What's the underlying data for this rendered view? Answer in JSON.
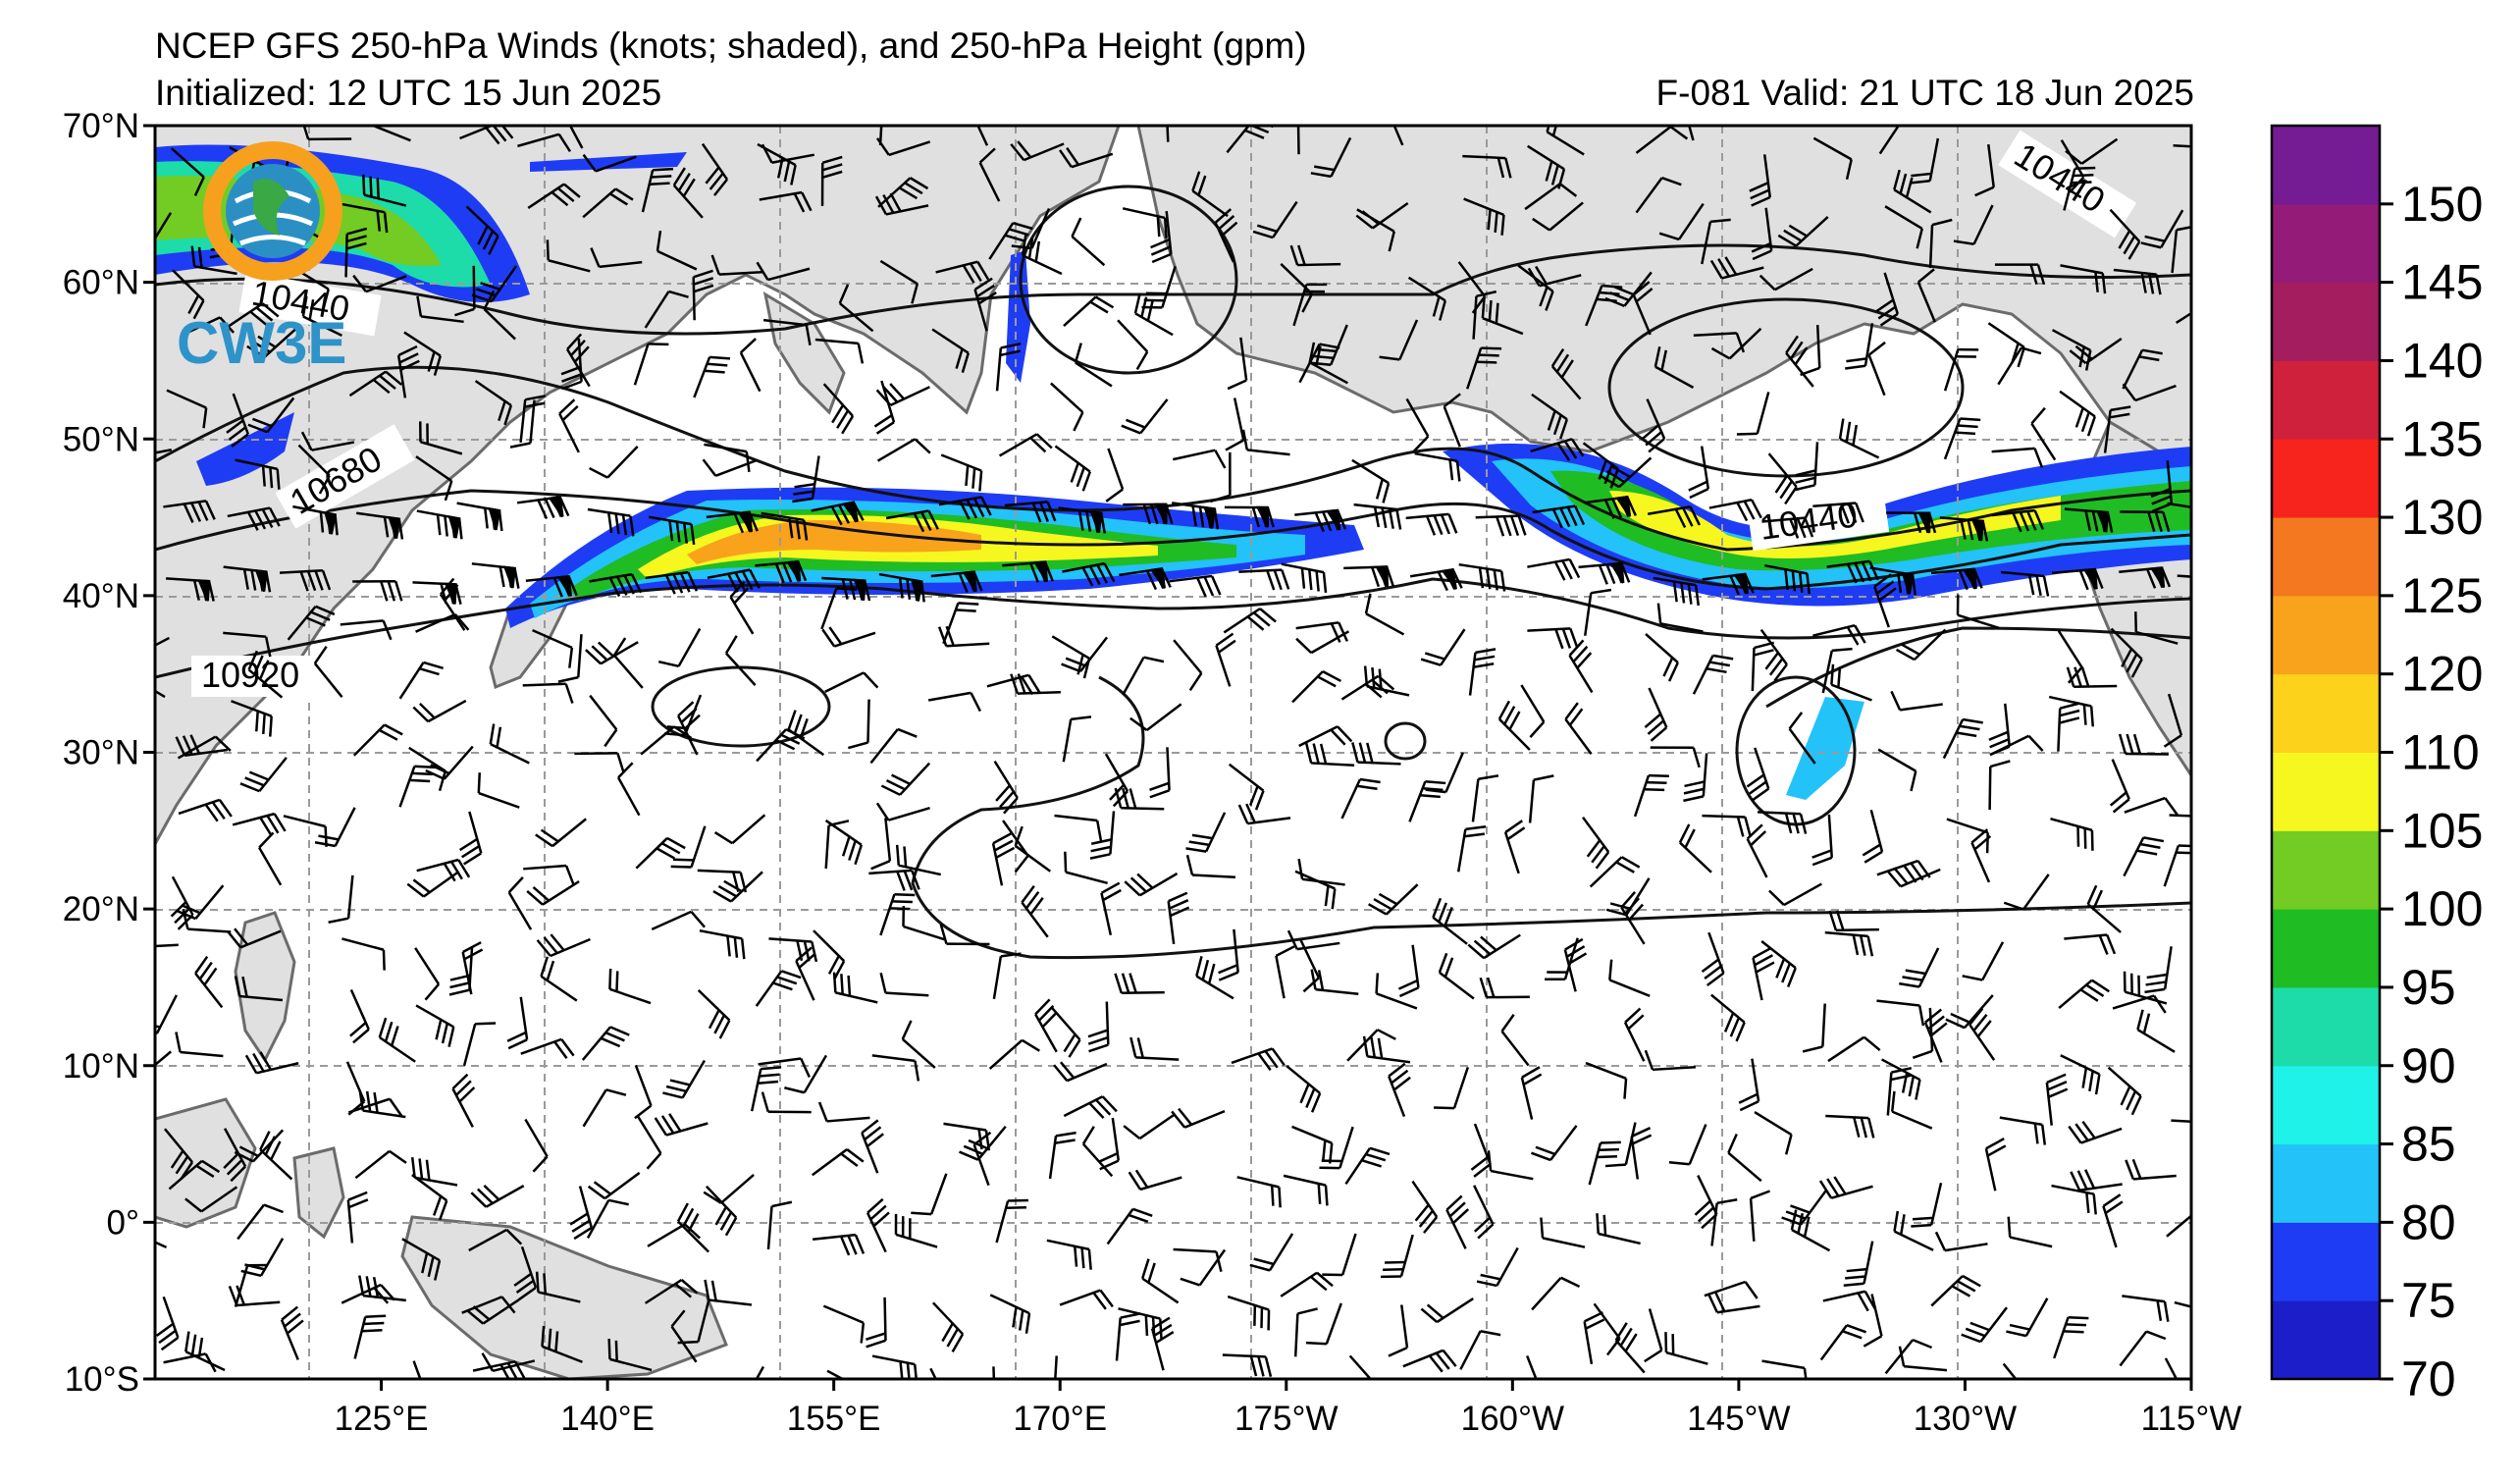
{
  "header": {
    "title": "NCEP GFS 250-hPa Winds (knots; shaded), and 250-hPa Height (gpm)",
    "initialized": "Initialized: 12 UTC 15 Jun 2025",
    "valid": "F-081  Valid: 21 UTC 18 Jun 2025"
  },
  "logo": {
    "text": "CW3E"
  },
  "map": {
    "lon_range": [
      110,
      245
    ],
    "lat_range": [
      -10,
      70
    ],
    "lat_labels": [
      "70°N",
      "60°N",
      "50°N",
      "40°N",
      "30°N",
      "20°N",
      "10°N",
      "0°",
      "10°S"
    ],
    "lon_labels": [
      "125°E",
      "140°E",
      "155°E",
      "170°E",
      "175°W",
      "160°W",
      "145°W",
      "130°W",
      "115°W"
    ],
    "contour_labels": [
      "10440",
      "10680",
      "10920",
      "10440",
      "10440"
    ]
  },
  "colorbar": {
    "ticks": [
      "70",
      "75",
      "80",
      "85",
      "90",
      "95",
      "100",
      "105",
      "110",
      "120",
      "125",
      "130",
      "135",
      "140",
      "145",
      "150"
    ],
    "colors": [
      "#1c1fc9",
      "#1f3cf5",
      "#23c2f9",
      "#1ff2e8",
      "#1ddcaa",
      "#20bc24",
      "#72cc24",
      "#f7f720",
      "#fcd21a",
      "#f9a31c",
      "#f47820",
      "#f6241c",
      "#d0213c",
      "#a41d5e",
      "#941b78",
      "#751b93"
    ]
  }
}
